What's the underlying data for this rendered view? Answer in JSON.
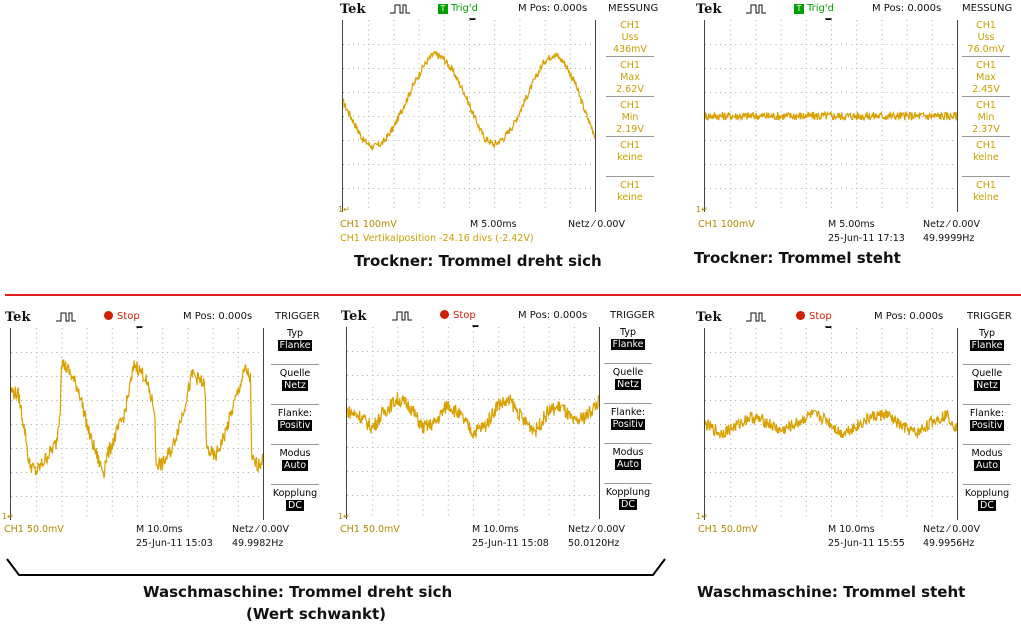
{
  "scopes": [
    {
      "id": "s1",
      "logo": "Tek",
      "acq_icon": "acquisition-pulse-icon",
      "trig_state": "Trig'd",
      "trig_state_type": "triggered",
      "mpos": "M Pos: 0.000s",
      "side_title": "MESSUNG",
      "side_kind": "measurement",
      "side": [
        {
          "l1": "CH1",
          "l2": "Uss",
          "l3": "436mV"
        },
        {
          "l1": "CH1",
          "l2": "Max",
          "l3": "2.62V"
        },
        {
          "l1": "CH1",
          "l2": "Min",
          "l3": "2.19V"
        },
        {
          "l1": "CH1",
          "l2": "keine",
          "l3": ""
        },
        {
          "l1": "CH1",
          "l2": "keine",
          "l3": ""
        }
      ],
      "ch_scale": "CH1  100mV",
      "timebase": "M 5.00ms",
      "trigger": "Netz ⁄ 0.00V",
      "extra": "CH1 Vertikalposition  -24.16 divs (-2.42V)",
      "date": "",
      "freq": ""
    },
    {
      "id": "s2",
      "logo": "Tek",
      "acq_icon": "acquisition-pulse-icon",
      "trig_state": "Trig'd",
      "trig_state_type": "triggered",
      "mpos": "M Pos: 0.000s",
      "side_title": "MESSUNG",
      "side_kind": "measurement",
      "side": [
        {
          "l1": "CH1",
          "l2": "Uss",
          "l3": "76.0mV"
        },
        {
          "l1": "CH1",
          "l2": "Max",
          "l3": "2.45V"
        },
        {
          "l1": "CH1",
          "l2": "Min",
          "l3": "2.37V"
        },
        {
          "l1": "CH1",
          "l2": "keine",
          "l3": ""
        },
        {
          "l1": "CH1",
          "l2": "keine",
          "l3": ""
        }
      ],
      "ch_scale": "CH1  100mV",
      "timebase": "M 5.00ms",
      "trigger": "Netz ⁄ 0.00V",
      "extra": "",
      "date": "25-Jun-11 17:13",
      "freq": "49.9999Hz"
    },
    {
      "id": "s3",
      "logo": "Tek",
      "acq_icon": "acquisition-pulse-icon",
      "trig_state": "Stop",
      "trig_state_type": "stopped",
      "mpos": "M Pos: 0.000s",
      "side_title": "TRIGGER",
      "side_kind": "trigger",
      "side": [
        {
          "l1": "Typ",
          "l2": "Flanke"
        },
        {
          "l1": "Quelle",
          "l2": "Netz"
        },
        {
          "l1": "Flanke:",
          "l2": "Positiv"
        },
        {
          "l1": "Modus",
          "l2": "Auto"
        },
        {
          "l1": "Kopplung",
          "l2": "DC"
        }
      ],
      "ch_scale": "CH1  50.0mV",
      "timebase": "M 10.0ms",
      "trigger": "Netz ⁄ 0.00V",
      "extra": "",
      "date": "25-Jun-11 15:03",
      "freq": "49.9982Hz"
    },
    {
      "id": "s4",
      "logo": "Tek",
      "acq_icon": "acquisition-pulse-icon",
      "trig_state": "Stop",
      "trig_state_type": "stopped",
      "mpos": "M Pos: 0.000s",
      "side_title": "TRIGGER",
      "side_kind": "trigger",
      "side": [
        {
          "l1": "Typ",
          "l2": "Flanke"
        },
        {
          "l1": "Quelle",
          "l2": "Netz"
        },
        {
          "l1": "Flanke:",
          "l2": "Positiv"
        },
        {
          "l1": "Modus",
          "l2": "Auto"
        },
        {
          "l1": "Kopplung",
          "l2": "DC"
        }
      ],
      "ch_scale": "CH1  50.0mV",
      "timebase": "M 10.0ms",
      "trigger": "Netz ⁄ 0.00V",
      "extra": "",
      "date": "25-Jun-11 15:08",
      "freq": "50.0120Hz"
    },
    {
      "id": "s5",
      "logo": "Tek",
      "acq_icon": "acquisition-pulse-icon",
      "trig_state": "Stop",
      "trig_state_type": "stopped",
      "mpos": "M Pos: 0.000s",
      "side_title": "TRIGGER",
      "side_kind": "trigger",
      "side": [
        {
          "l1": "Typ",
          "l2": "Flanke"
        },
        {
          "l1": "Quelle",
          "l2": "Netz"
        },
        {
          "l1": "Flanke:",
          "l2": "Positiv"
        },
        {
          "l1": "Modus",
          "l2": "Auto"
        },
        {
          "l1": "Kopplung",
          "l2": "DC"
        }
      ],
      "ch_scale": "CH1  50.0mV",
      "timebase": "M 10.0ms",
      "trigger": "Netz ⁄ 0.00V",
      "extra": "",
      "date": "25-Jun-11 15:55",
      "freq": "49.9956Hz"
    }
  ],
  "captions": {
    "c1": "Trockner: Trommel dreht sich",
    "c2": "Trockner: Trommel steht",
    "c3a": "Waschmaschine: Trommel dreht sich",
    "c3b": "(Wert schwankt)",
    "c4": "Waschmaschine: Trommel steht"
  },
  "colors": {
    "trace": "#d9a000",
    "grid": "#a8a8a8",
    "separator": "#e02020",
    "triggered": "#00a000",
    "stopped": "#d02000"
  },
  "chart_data": [
    {
      "type": "line",
      "id": "s1",
      "x_divs": 10,
      "y_divs": 8,
      "grid": true,
      "series": [
        {
          "x": [
            0,
            0.4,
            0.8,
            1.2,
            1.6,
            2,
            2.4,
            2.8,
            3.2,
            3.6,
            4,
            4.4,
            4.8,
            5.2,
            5.6,
            6,
            6.4,
            6.8,
            7.2,
            7.6,
            8,
            8.4,
            8.8,
            9.2,
            9.6,
            10
          ],
          "y": [
            4.6,
            3.8,
            3,
            2.7,
            2.9,
            3.5,
            4.4,
            5.3,
            6.1,
            6.6,
            6.4,
            5.8,
            5,
            4,
            3.1,
            2.8,
            3.1,
            3.7,
            4.6,
            5.5,
            6.3,
            6.6,
            6.2,
            5.4,
            4.2,
            3.2
          ]
        }
      ],
      "noise": 0.15
    },
    {
      "type": "line",
      "id": "s2",
      "x_divs": 10,
      "y_divs": 8,
      "grid": true,
      "series": [
        {
          "x": [
            0,
            10
          ],
          "y": [
            4.0,
            4.0
          ]
        }
      ],
      "noise": 0.18
    },
    {
      "type": "line",
      "id": "s3",
      "x_divs": 10,
      "y_divs": 8,
      "grid": true,
      "series": [
        {
          "x": [
            0,
            0.3,
            0.6,
            0.7,
            1.0,
            1.4,
            1.8,
            1.95,
            2.0,
            2.3,
            2.7,
            3.1,
            3.5,
            3.7,
            3.75,
            4.1,
            4.5,
            4.9,
            5.3,
            5.7,
            5.75,
            6.0,
            6.4,
            6.8,
            7.2,
            7.7,
            7.75,
            8.1,
            8.5,
            8.9,
            9.3,
            9.5,
            9.55,
            9.8,
            10
          ],
          "y": [
            5.4,
            5.2,
            3.4,
            2.4,
            2.0,
            2.6,
            3.2,
            4.6,
            6.6,
            6.2,
            5.4,
            3.6,
            2.4,
            2.0,
            2.5,
            3.4,
            4.4,
            6.5,
            6.0,
            4.6,
            2.4,
            2.3,
            3.0,
            4.4,
            6.1,
            5.6,
            3.0,
            2.6,
            3.6,
            5.0,
            6.3,
            5.9,
            2.5,
            2.3,
            2.5
          ]
        }
      ],
      "noise": 0.3
    },
    {
      "type": "line",
      "id": "s4",
      "x_divs": 10,
      "y_divs": 8,
      "grid": true,
      "series": [
        {
          "x": [
            0,
            0.5,
            1.0,
            1.5,
            2.0,
            2.5,
            3.0,
            3.5,
            4.0,
            4.5,
            5.0,
            5.5,
            6.0,
            6.5,
            7.0,
            7.5,
            8.0,
            8.5,
            9.0,
            9.5,
            10
          ],
          "y": [
            4.5,
            4.3,
            3.8,
            4.5,
            5.0,
            4.7,
            3.8,
            4.0,
            4.8,
            4.3,
            3.6,
            3.9,
            4.8,
            4.9,
            4.1,
            3.7,
            4.5,
            4.7,
            4.0,
            4.3,
            4.9
          ]
        }
      ],
      "noise": 0.3
    },
    {
      "type": "line",
      "id": "s5",
      "x_divs": 10,
      "y_divs": 8,
      "grid": true,
      "series": [
        {
          "x": [
            0,
            0.6,
            1.2,
            1.8,
            2.4,
            3.0,
            3.6,
            4.2,
            4.8,
            5.4,
            6.0,
            6.6,
            7.2,
            7.8,
            8.4,
            9.0,
            9.6,
            10
          ],
          "y": [
            4.0,
            3.6,
            3.9,
            4.3,
            4.1,
            3.7,
            4.0,
            4.4,
            4.2,
            3.6,
            3.9,
            4.3,
            4.4,
            3.9,
            3.6,
            4.1,
            4.4,
            3.8
          ]
        }
      ],
      "noise": 0.25
    }
  ]
}
